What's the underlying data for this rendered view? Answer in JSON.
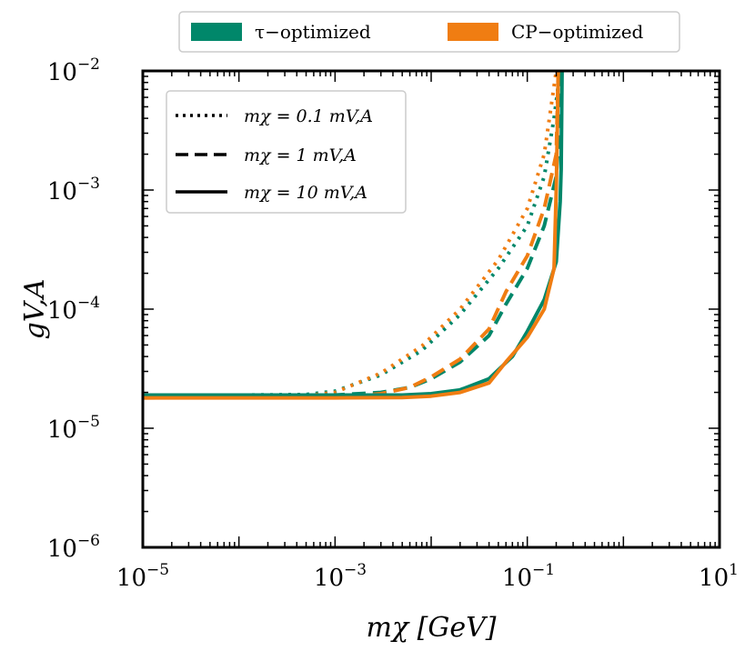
{
  "chart_data": {
    "type": "line",
    "xscale": "log",
    "yscale": "log",
    "xlim": [
      1e-05,
      10
    ],
    "ylim": [
      1e-06,
      0.01
    ],
    "xlabel": "mχ [GeV]",
    "ylabel": "gV,A",
    "x_ticks": [
      {
        "exp": "−5"
      },
      {
        "exp": "−3"
      },
      {
        "exp": "−1"
      },
      {
        "exp": "1"
      }
    ],
    "y_ticks": [
      {
        "exp": "−6"
      },
      {
        "exp": "−5"
      },
      {
        "exp": "−4"
      },
      {
        "exp": "−3"
      },
      {
        "exp": "−2"
      }
    ],
    "tick_base": "10",
    "color_legend": [
      {
        "label": "τ−optimized",
        "color": "#00876a"
      },
      {
        "label": "CP−optimized",
        "color": "#f07d12"
      }
    ],
    "style_legend": [
      {
        "label": "mχ = 0.1 mV,A",
        "dash": "dotted"
      },
      {
        "label": "mχ = 1 mV,A",
        "dash": "dashed"
      },
      {
        "label": "mχ = 10 mV,A",
        "dash": "solid"
      }
    ],
    "series": [
      {
        "name": "τ−optimized, mχ = 0.1 mV,A",
        "color": "#00876a",
        "dash": "dotted",
        "x": [
          1e-05,
          0.0001,
          0.0005,
          0.001,
          0.003,
          0.008,
          0.02,
          0.05,
          0.1,
          0.15,
          0.19,
          0.22
        ],
        "y": [
          1.9e-05,
          1.9e-05,
          1.92e-05,
          2.05e-05,
          2.8e-05,
          4.5e-05,
          9e-05,
          0.00022,
          0.0005,
          0.0013,
          0.004,
          0.01
        ]
      },
      {
        "name": "CP−optimized, mχ = 0.1 mV,A",
        "color": "#f07d12",
        "dash": "dotted",
        "x": [
          1e-05,
          0.0001,
          0.0005,
          0.001,
          0.003,
          0.008,
          0.02,
          0.05,
          0.1,
          0.15,
          0.2
        ],
        "y": [
          1.85e-05,
          1.85e-05,
          1.88e-05,
          2e-05,
          2.9e-05,
          4.9e-05,
          0.0001,
          0.00026,
          0.0007,
          0.002,
          0.01
        ]
      },
      {
        "name": "τ−optimized, mχ = 1 mV,A",
        "color": "#00876a",
        "dash": "dashed",
        "x": [
          1e-05,
          0.001,
          0.003,
          0.006,
          0.01,
          0.02,
          0.04,
          0.06,
          0.1,
          0.15,
          0.2,
          0.22,
          0.225
        ],
        "y": [
          1.9e-05,
          1.9e-05,
          2e-05,
          2.2e-05,
          2.6e-05,
          3.6e-05,
          6e-05,
          0.00011,
          0.00022,
          0.0005,
          0.0013,
          0.004,
          0.01
        ]
      },
      {
        "name": "CP−optimized, mχ = 1 mV,A",
        "color": "#f07d12",
        "dash": "dashed",
        "x": [
          1e-05,
          0.001,
          0.003,
          0.006,
          0.01,
          0.02,
          0.04,
          0.06,
          0.1,
          0.15,
          0.2,
          0.21
        ],
        "y": [
          1.8e-05,
          1.82e-05,
          1.95e-05,
          2.2e-05,
          2.7e-05,
          3.8e-05,
          6.8e-05,
          0.00014,
          0.00028,
          0.0007,
          0.002,
          0.01
        ]
      },
      {
        "name": "τ−optimized, mχ = 10 mV,A",
        "color": "#00876a",
        "dash": "solid",
        "x": [
          1e-05,
          0.001,
          0.005,
          0.01,
          0.02,
          0.04,
          0.07,
          0.1,
          0.15,
          0.2,
          0.22,
          0.225,
          0.23
        ],
        "y": [
          1.9e-05,
          1.9e-05,
          1.9e-05,
          1.95e-05,
          2.1e-05,
          2.6e-05,
          4e-05,
          6.5e-05,
          0.00012,
          0.00025,
          0.0008,
          0.0015,
          0.01
        ]
      },
      {
        "name": "CP−optimized, mχ = 10 mV,A",
        "color": "#f07d12",
        "dash": "solid",
        "x": [
          1e-05,
          0.001,
          0.005,
          0.01,
          0.02,
          0.04,
          0.06,
          0.1,
          0.15,
          0.19,
          0.2,
          0.205,
          0.21
        ],
        "y": [
          1.8e-05,
          1.8e-05,
          1.81e-05,
          1.86e-05,
          2e-05,
          2.4e-05,
          3.6e-05,
          5.8e-05,
          0.0001,
          0.00022,
          0.001,
          0.003,
          0.01
        ]
      }
    ]
  }
}
